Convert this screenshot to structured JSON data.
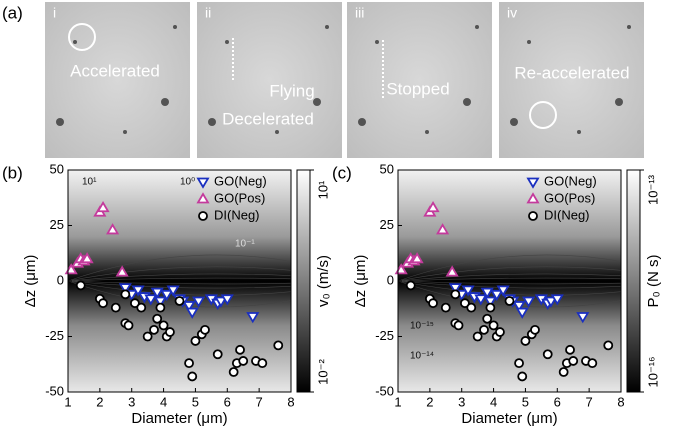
{
  "panel_a": {
    "label": "(a)",
    "frames": [
      {
        "index": "i",
        "captions": [
          "Accelerated"
        ]
      },
      {
        "index": "ii",
        "captions": [
          "Flying",
          "Decelerated"
        ]
      },
      {
        "index": "iii",
        "captions": [
          "Stopped"
        ]
      },
      {
        "index": "iv",
        "captions": [
          "Re-accelerated"
        ]
      }
    ]
  },
  "chart_data": [
    {
      "type": "scatter",
      "panel_label": "(b)",
      "x_label": "Diameter (μm)",
      "y_label": "Δz (μm)",
      "xlim": [
        1,
        8
      ],
      "xticks": [
        1,
        2,
        3,
        4,
        5,
        6,
        7,
        8
      ],
      "ylim": [
        -50,
        50
      ],
      "yticks": [
        -50,
        -25,
        0,
        25,
        50
      ],
      "legend": "upper right",
      "annotations": [
        "10¹",
        "10⁰",
        "10⁻¹"
      ],
      "colorbar": {
        "label": "v₀ (m/s)",
        "log": true,
        "lim": [
          0.01,
          10
        ],
        "ticks": [
          {
            "value": 10,
            "label": "10¹"
          },
          {
            "value": 0.01,
            "label": "10⁻²"
          }
        ]
      },
      "series": [
        {
          "name": "GO(Neg)",
          "color": "#1a2fc0",
          "marker": "triangle-down",
          "x": [
            2.8,
            3.0,
            3.2,
            3.4,
            3.6,
            3.8,
            3.9,
            4.1,
            4.3,
            4.5,
            4.6,
            4.8,
            4.9,
            5.1,
            5.5,
            5.7,
            5.8,
            6.0,
            6.8
          ],
          "values": [
            -3,
            -6,
            -4,
            -7,
            -8,
            -5,
            -9,
            -6,
            -4,
            -8,
            -9,
            -11,
            -14,
            -9,
            -8,
            -10,
            -9,
            -8,
            -16
          ]
        },
        {
          "name": "GO(Pos)",
          "color": "#c43a9c",
          "marker": "triangle-up",
          "x": [
            1.1,
            1.3,
            1.4,
            1.5,
            1.6,
            2.0,
            2.1,
            2.4,
            2.7
          ],
          "values": [
            5,
            8,
            10,
            9,
            10,
            31,
            33,
            23,
            4
          ]
        },
        {
          "name": "DI(Neg)",
          "color": "#000000",
          "marker": "circle",
          "x": [
            1.4,
            2.0,
            2.1,
            2.5,
            2.8,
            2.8,
            2.9,
            3.1,
            3.3,
            3.5,
            3.7,
            3.8,
            3.9,
            4.0,
            4.1,
            4.2,
            4.5,
            4.8,
            4.9,
            5.0,
            5.2,
            5.3,
            5.7,
            6.2,
            6.3,
            6.4,
            6.5,
            6.9,
            7.1,
            7.6
          ],
          "values": [
            -2,
            -8,
            -10,
            -12,
            -6,
            -19,
            -20,
            -10,
            -12,
            -25,
            -22,
            -17,
            -12,
            -20,
            -25,
            -23,
            -9,
            -37,
            -43,
            -27,
            -24,
            -22,
            -33,
            -41,
            -37,
            -31,
            -36,
            -36,
            -37,
            -29
          ]
        }
      ]
    },
    {
      "type": "scatter",
      "panel_label": "(c)",
      "x_label": "Diameter (μm)",
      "y_label": "Δz (μm)",
      "xlim": [
        1,
        8
      ],
      "xticks": [
        1,
        2,
        3,
        4,
        5,
        6,
        7,
        8
      ],
      "ylim": [
        -50,
        50
      ],
      "yticks": [
        -50,
        -25,
        0,
        25,
        50
      ],
      "legend": "upper right",
      "annotations": [
        "10⁻¹⁵",
        "10⁻¹⁴"
      ],
      "colorbar": {
        "label": "P₀ (N s)",
        "log": true,
        "lim": [
          1e-16,
          1e-13
        ],
        "ticks": [
          {
            "value": 1e-13,
            "label": "10⁻¹³"
          },
          {
            "value": 1e-16,
            "label": "10⁻¹⁶"
          }
        ]
      },
      "series": [
        {
          "name": "GO(Neg)",
          "color": "#1a2fc0",
          "marker": "triangle-down",
          "x": [
            2.8,
            3.0,
            3.2,
            3.4,
            3.6,
            3.8,
            3.9,
            4.1,
            4.3,
            4.5,
            4.6,
            4.8,
            4.9,
            5.1,
            5.5,
            5.7,
            5.8,
            6.0,
            6.8
          ],
          "values": [
            -3,
            -6,
            -4,
            -7,
            -8,
            -5,
            -9,
            -6,
            -4,
            -8,
            -9,
            -11,
            -14,
            -9,
            -8,
            -10,
            -9,
            -8,
            -16
          ]
        },
        {
          "name": "GO(Pos)",
          "color": "#c43a9c",
          "marker": "triangle-up",
          "x": [
            1.1,
            1.3,
            1.4,
            1.5,
            1.6,
            2.0,
            2.1,
            2.4,
            2.7
          ],
          "values": [
            5,
            8,
            10,
            9,
            10,
            31,
            33,
            23,
            4
          ]
        },
        {
          "name": "DI(Neg)",
          "color": "#000000",
          "marker": "circle",
          "x": [
            1.4,
            2.0,
            2.1,
            2.5,
            2.8,
            2.8,
            2.9,
            3.1,
            3.3,
            3.5,
            3.7,
            3.8,
            3.9,
            4.0,
            4.1,
            4.2,
            4.5,
            4.8,
            4.9,
            5.0,
            5.2,
            5.3,
            5.7,
            6.2,
            6.3,
            6.4,
            6.5,
            6.9,
            7.1,
            7.6
          ],
          "values": [
            -2,
            -8,
            -10,
            -12,
            -6,
            -19,
            -20,
            -10,
            -12,
            -25,
            -22,
            -17,
            -12,
            -20,
            -25,
            -23,
            -9,
            -37,
            -43,
            -27,
            -24,
            -22,
            -33,
            -41,
            -37,
            -31,
            -36,
            -36,
            -37,
            -29
          ]
        }
      ]
    }
  ]
}
